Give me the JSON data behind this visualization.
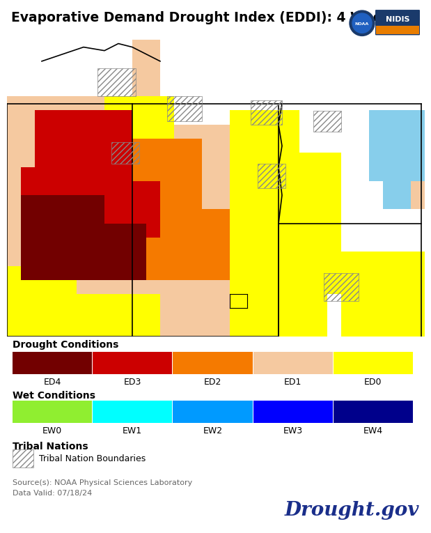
{
  "title": "Evaporative Demand Drought Index (EDDI): 4 Week",
  "title_fontsize": 13.5,
  "background_color": "#ffffff",
  "drought_conditions_label": "Drought Conditions",
  "wet_conditions_label": "Wet Conditions",
  "tribal_nations_label": "Tribal Nations",
  "tribal_boundary_label": "Tribal Nation Boundaries",
  "source_text": "Source(s): NOAA Physical Sciences Laboratory",
  "date_text": "Data Valid: 07/18/24",
  "drought_gov_text": "Drought.gov",
  "drought_colors": [
    "#720000",
    "#cc0000",
    "#f57a00",
    "#f5c9a0",
    "#ffff00"
  ],
  "drought_labels": [
    "ED4",
    "ED3",
    "ED2",
    "ED1",
    "ED0"
  ],
  "wet_colors": [
    "#90ee30",
    "#00ffff",
    "#009aff",
    "#0000ff",
    "#00008b"
  ],
  "wet_labels": [
    "EW0",
    "EW1",
    "EW2",
    "EW3",
    "EW4"
  ],
  "wet_spot_color": "#87ceeb",
  "map_bg_color": "#f5c9a0",
  "white_color": "#ffffff",
  "yellow_color": "#ffff00",
  "red_color": "#cc0000",
  "dark_red_color": "#720000",
  "orange_color": "#f57a00",
  "hatch_color": "#aaaaaa"
}
